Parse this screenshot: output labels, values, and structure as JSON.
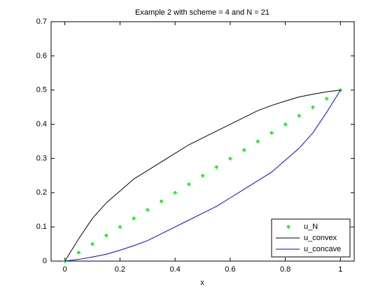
{
  "chart_data": {
    "type": "line",
    "title": "Example 2 with scheme = 4 and N = 21",
    "x_label": "x",
    "x": [
      0,
      0.05,
      0.1,
      0.15,
      0.2,
      0.25,
      0.3,
      0.35,
      0.4,
      0.45,
      0.5,
      0.55,
      0.6,
      0.65,
      0.7,
      0.75,
      0.8,
      0.85,
      0.9,
      0.95,
      1
    ],
    "series": [
      {
        "name": "u_N",
        "color": "#00ff00",
        "mode": "markers",
        "values": [
          0,
          0.025,
          0.05,
          0.075,
          0.1,
          0.125,
          0.15,
          0.175,
          0.2,
          0.225,
          0.25,
          0.275,
          0.3,
          0.325,
          0.35,
          0.375,
          0.4,
          0.425,
          0.45,
          0.475,
          0.5
        ]
      },
      {
        "name": "u_convex",
        "color": "#000000",
        "mode": "lines",
        "values": [
          0,
          0.065,
          0.125,
          0.17,
          0.205,
          0.24,
          0.265,
          0.29,
          0.315,
          0.34,
          0.36,
          0.38,
          0.4,
          0.42,
          0.44,
          0.455,
          0.468,
          0.48,
          0.488,
          0.495,
          0.5
        ]
      },
      {
        "name": "u_concave",
        "color": "#0000ff",
        "mode": "lines",
        "values": [
          0,
          0.005,
          0.012,
          0.02,
          0.032,
          0.045,
          0.06,
          0.08,
          0.1,
          0.12,
          0.14,
          0.16,
          0.185,
          0.21,
          0.235,
          0.26,
          0.295,
          0.33,
          0.375,
          0.435,
          0.5
        ]
      }
    ],
    "xlim": [
      -0.05,
      1.05
    ],
    "xticks": [
      0,
      0.2,
      0.4,
      0.6,
      0.8,
      1
    ],
    "ylim": [
      0,
      0.7
    ],
    "yticks": [
      0,
      0.1,
      0.2,
      0.3,
      0.4,
      0.5,
      0.6,
      0.7
    ],
    "grid": false,
    "legend_corner": "lower right"
  }
}
